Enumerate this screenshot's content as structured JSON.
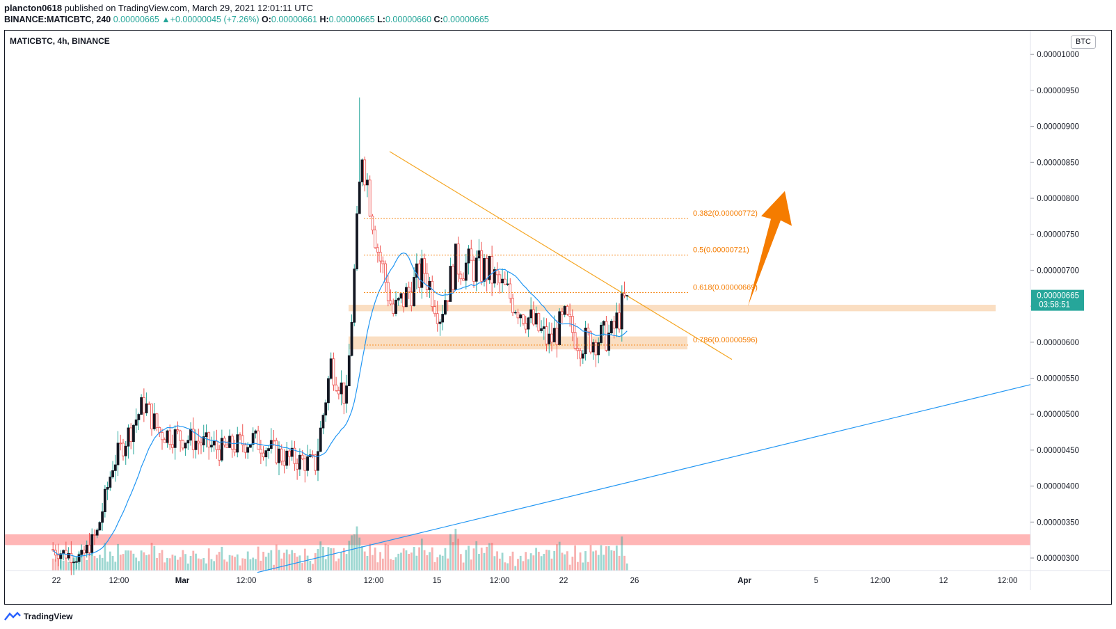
{
  "header": {
    "author": "plancton0618",
    "published_text": "published on TradingView.com, March 29, 2021 12:01:11 UTC",
    "ticker": "BINANCE:MATICBTC, 240",
    "last": "0.00000665",
    "change": "+0.00000045 (+7.26%)",
    "o_label": "O:",
    "o_value": "0.00000661",
    "h_label": "H:",
    "h_value": "0.00000665",
    "l_label": "L:",
    "l_value": "0.00000660",
    "c_label": "C:",
    "c_value": "0.00000665"
  },
  "symbol_label": "MATICBTC, 4h, BINANCE",
  "currency_button": "BTC",
  "footer": {
    "brand": "TradingView"
  },
  "colors": {
    "up": "#26a69a",
    "down": "#ef5350",
    "ma": "#2196f3",
    "fib": "#f57c00",
    "zone": "#f5c28f",
    "support": "#ff9e9e"
  },
  "chart_data": {
    "type": "candlestick",
    "title": "MATICBTC, 4h, BINANCE",
    "ylim": [
      2.8e-06,
      1.02e-05
    ],
    "y_ticks": [
      "0.00001000",
      "0.00000950",
      "0.00000900",
      "0.00000850",
      "0.00000800",
      "0.00000750",
      "0.00000700",
      "0.00000650",
      "0.00000600",
      "0.00000550",
      "0.00000500",
      "0.00000450",
      "0.00000400",
      "0.00000350",
      "0.00000300"
    ],
    "x_ticks": [
      "22",
      "12:00",
      "Mar",
      "12:00",
      "8",
      "12:00",
      "15",
      "12:00",
      "22",
      "26",
      "Apr",
      "5",
      "12:00",
      "12",
      "12:00"
    ],
    "last_price": {
      "value": "0.00000665",
      "countdown": "03:58:51"
    },
    "fib_levels": [
      {
        "label": "0.382(0.00000772)",
        "value": 7.72e-06
      },
      {
        "label": "0.5(0.00000721)",
        "value": 7.21e-06
      },
      {
        "label": "0.618(0.00000669)",
        "value": 6.69e-06
      },
      {
        "label": "0.786(0.00000596)",
        "value": 5.96e-06
      }
    ],
    "zones": [
      {
        "name": "resistance-zone",
        "from": 6.43e-06,
        "to": 6.52e-06
      },
      {
        "name": "support-zone",
        "from": 5.9e-06,
        "to": 6.08e-06
      },
      {
        "name": "lower-support-band",
        "from": 3.18e-06,
        "to": 3.33e-06
      }
    ],
    "trendlines": [
      {
        "name": "descending-trendline",
        "from": [
          "12:00 (Mar 11)",
          8.65e-06
        ],
        "to": [
          "Mar 29",
          5.76e-06
        ]
      },
      {
        "name": "ascending-trendline",
        "from": [
          "Mar 4",
          2.8e-06
        ],
        "to": [
          "Apr 4",
          5.41e-06
        ]
      }
    ],
    "anchors": [
      {
        "label": "Feb 20",
        "close": 3.12e-06
      },
      {
        "label": "Feb 22",
        "close": 3e-06
      },
      {
        "label": "Feb 23",
        "close": 3.35e-06
      },
      {
        "label": "Feb 24",
        "close": 4.3e-06
      },
      {
        "label": "Feb 26",
        "close": 5.15e-06
      },
      {
        "label": "Feb 27",
        "close": 4.75e-06
      },
      {
        "label": "Mar 1",
        "close": 4.65e-06
      },
      {
        "label": "Mar 3",
        "close": 4.5e-06
      },
      {
        "label": "Mar 5",
        "close": 4.65e-06
      },
      {
        "label": "Mar 7",
        "close": 4.4e-06
      },
      {
        "label": "Mar 9",
        "close": 4.3e-06
      },
      {
        "label": "Mar 10",
        "close": 5.7e-06
      },
      {
        "label": "Mar 11",
        "close": 5.2e-06
      },
      {
        "label": "Mar 12",
        "close": 8.7e-06
      },
      {
        "label": "Mar 13",
        "close": 7.3e-06
      },
      {
        "label": "Mar 14",
        "close": 6.4e-06
      },
      {
        "label": "Mar 16",
        "close": 7e-06
      },
      {
        "label": "Mar 17",
        "close": 6.4e-06
      },
      {
        "label": "Mar 18",
        "close": 7.1e-06
      },
      {
        "label": "Mar 20",
        "close": 7e-06
      },
      {
        "label": "Mar 22",
        "close": 6.5e-06
      },
      {
        "label": "Mar 24",
        "close": 6e-06
      },
      {
        "label": "Mar 25",
        "close": 6.3e-06
      },
      {
        "label": "Mar 26",
        "close": 6e-06
      },
      {
        "label": "Mar 28",
        "close": 6.1e-06
      },
      {
        "label": "Mar 29",
        "close": 6.65e-06
      }
    ],
    "arrow": {
      "direction": "up",
      "from": [
        "Mar 29",
        6.5e-06
      ],
      "to": [
        "Apr 1",
        8.1e-06
      ]
    }
  }
}
